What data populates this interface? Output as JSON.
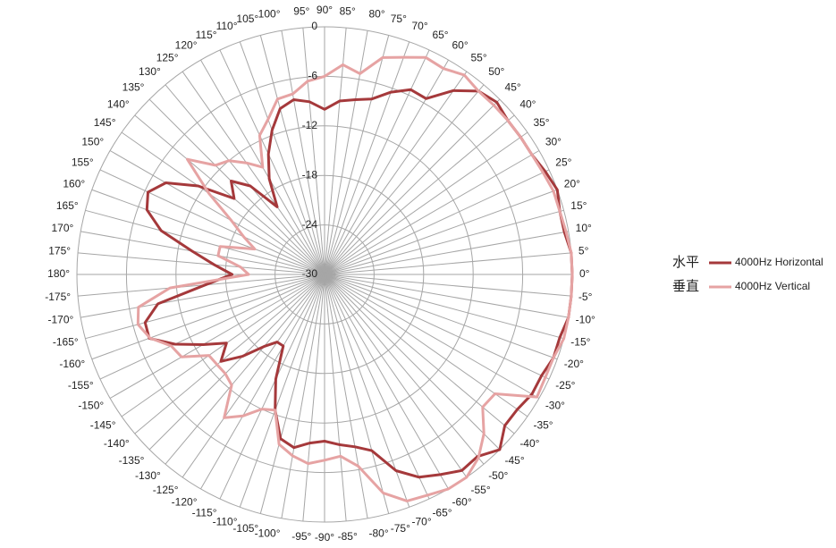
{
  "chart_data": {
    "type": "polar",
    "categories": [
      "0°",
      "5°",
      "10°",
      "15°",
      "20°",
      "25°",
      "30°",
      "35°",
      "40°",
      "45°",
      "50°",
      "55°",
      "60°",
      "65°",
      "70°",
      "75°",
      "80°",
      "85°",
      "90°",
      "95°",
      "100°",
      "105°",
      "110°",
      "115°",
      "120°",
      "125°",
      "130°",
      "135°",
      "140°",
      "145°",
      "150°",
      "155°",
      "160°",
      "165°",
      "170°",
      "175°",
      "180°",
      "-175°",
      "-170°",
      "-165°",
      "-160°",
      "-155°",
      "-150°",
      "-145°",
      "-140°",
      "-135°",
      "-130°",
      "-125°",
      "-120°",
      "-115°",
      "-110°",
      "-105°",
      "-100°",
      "-95°",
      "-90°",
      "-85°",
      "-80°",
      "-75°",
      "-70°",
      "-65°",
      "-60°",
      "-55°",
      "-50°",
      "-45°",
      "-40°",
      "-35°",
      "-30°",
      "-25°",
      "-20°",
      "-15°",
      "-10°",
      "-5°"
    ],
    "rlim": [
      -30,
      0
    ],
    "rticks": [
      -30,
      -24,
      -18,
      -12,
      -6,
      0
    ],
    "legend_position": "right",
    "series": [
      {
        "name": "4000Hz Horizontal",
        "label": "水平",
        "color": "#a5393b",
        "values": [
          0,
          0,
          -0.5,
          -0.5,
          0,
          -0.5,
          -1,
          -1,
          -1,
          -0.5,
          -1,
          -2.8,
          -5.4,
          -5.3,
          -6.5,
          -8,
          -8.5,
          -8.9,
          -10,
          -9,
          -8.5,
          -9.2,
          -11.4,
          -13.9,
          -16.6,
          -20,
          -16,
          -14,
          -15.7,
          -11.3,
          -7.8,
          -6.4,
          -7.1,
          -9.5,
          -13.7,
          -16.6,
          -18.8,
          -15.5,
          -9.5,
          -7.5,
          -7.4,
          -10,
          -13,
          -15.5,
          -13.6,
          -16,
          -18.6,
          -20,
          -20,
          -16,
          -12.5,
          -9.4,
          -8.7,
          -9.5,
          -9.8,
          -9.3,
          -8.8,
          -7.9,
          -4.7,
          -2.9,
          -2,
          -1,
          -1.2,
          0,
          -1.5,
          -1.5,
          -1,
          -1,
          -0.5,
          -0.5,
          0,
          0
        ]
      },
      {
        "name": "4000Hz Vertical",
        "label": "垂直",
        "color": "#e6a3a3",
        "values": [
          0,
          0,
          -0.3,
          -0.5,
          -0.5,
          -0.8,
          -1,
          -1,
          -1,
          -1,
          -1,
          -0.5,
          -1.2,
          -1,
          -2,
          -2.8,
          -5.3,
          -4.5,
          -6,
          -6.5,
          -7.8,
          -8,
          -10,
          -11.4,
          -15,
          -13.5,
          -12,
          -11.3,
          -8.3,
          -12.9,
          -17,
          -19.2,
          -21,
          -16.9,
          -16.9,
          -19.8,
          -20.8,
          -11.2,
          -7.1,
          -6.6,
          -7.5,
          -9.5,
          -10,
          -12.9,
          -13,
          -13,
          -12.5,
          -8.8,
          -10.2,
          -12,
          -12.5,
          -8.7,
          -7.7,
          -7,
          -7.5,
          -7.9,
          -6.4,
          -2.6,
          -0.8,
          -0.5,
          0,
          0,
          -1,
          -2.7,
          -5,
          -4.8,
          -0.3,
          -0.5,
          -0.5,
          0,
          0,
          0
        ]
      }
    ]
  }
}
